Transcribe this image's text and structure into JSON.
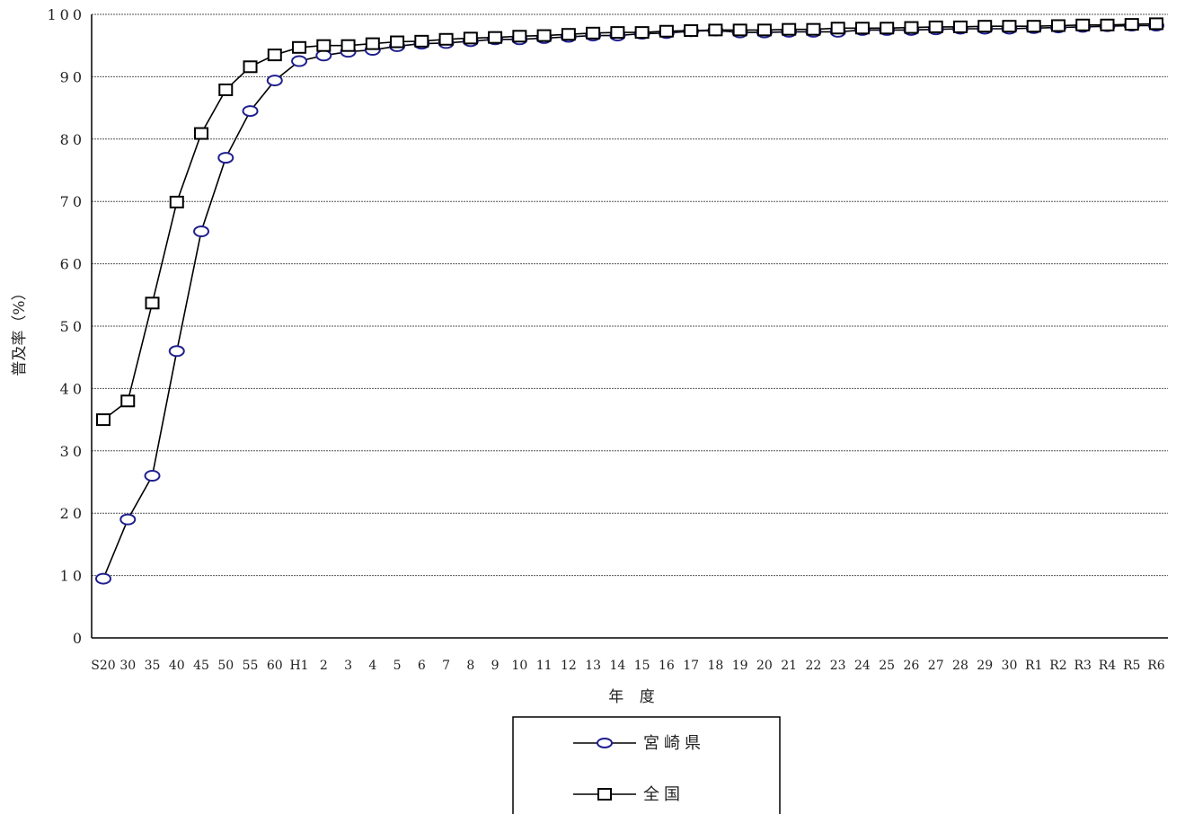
{
  "chart_data": {
    "type": "line",
    "xlabel": "年 度",
    "ylabel": "普及率（%）",
    "ylim": [
      0,
      100
    ],
    "yticks": [
      "0",
      "10",
      "20",
      "30",
      "40",
      "50",
      "60",
      "70",
      "80",
      "90",
      "100"
    ],
    "grid": "horizontal dashed",
    "legend_position": "bottom-center",
    "categories": [
      "S20",
      "30",
      "35",
      "40",
      "45",
      "50",
      "55",
      "60",
      "H1",
      "2",
      "3",
      "4",
      "5",
      "6",
      "7",
      "8",
      "9",
      "10",
      "11",
      "12",
      "13",
      "14",
      "15",
      "16",
      "17",
      "18",
      "19",
      "20",
      "21",
      "22",
      "23",
      "24",
      "25",
      "26",
      "27",
      "28",
      "29",
      "30",
      "R1",
      "R2",
      "R3",
      "R4",
      "R5",
      "R6"
    ],
    "series": [
      {
        "name": "宮崎県",
        "marker": "circle",
        "marker_color": "#1f1f8f",
        "values": [
          9.5,
          19,
          26,
          46,
          65.2,
          77,
          84.5,
          89.4,
          92.5,
          93.4,
          94,
          94.3,
          94.9,
          95.3,
          95.4,
          95.7,
          96,
          96,
          96.2,
          96.4,
          96.6,
          96.6,
          96.9,
          97,
          97.3,
          97.4,
          97.1,
          97.1,
          97.2,
          97.2,
          97.2,
          97.5,
          97.5,
          97.5,
          97.6,
          97.7,
          97.7,
          97.7,
          97.8,
          97.9,
          98,
          98.1,
          98.2,
          98.2
        ]
      },
      {
        "name": "全国",
        "marker": "square",
        "marker_color": "#000000",
        "values": [
          35,
          38,
          53.7,
          69.9,
          80.9,
          87.9,
          91.6,
          93.5,
          94.7,
          95,
          95,
          95.3,
          95.6,
          95.7,
          96,
          96.2,
          96.3,
          96.5,
          96.6,
          96.8,
          97,
          97.1,
          97.1,
          97.3,
          97.4,
          97.5,
          97.5,
          97.5,
          97.6,
          97.6,
          97.8,
          97.8,
          97.8,
          97.9,
          98,
          98,
          98.1,
          98.1,
          98.1,
          98.2,
          98.3,
          98.3,
          98.4,
          98.5
        ]
      }
    ]
  }
}
